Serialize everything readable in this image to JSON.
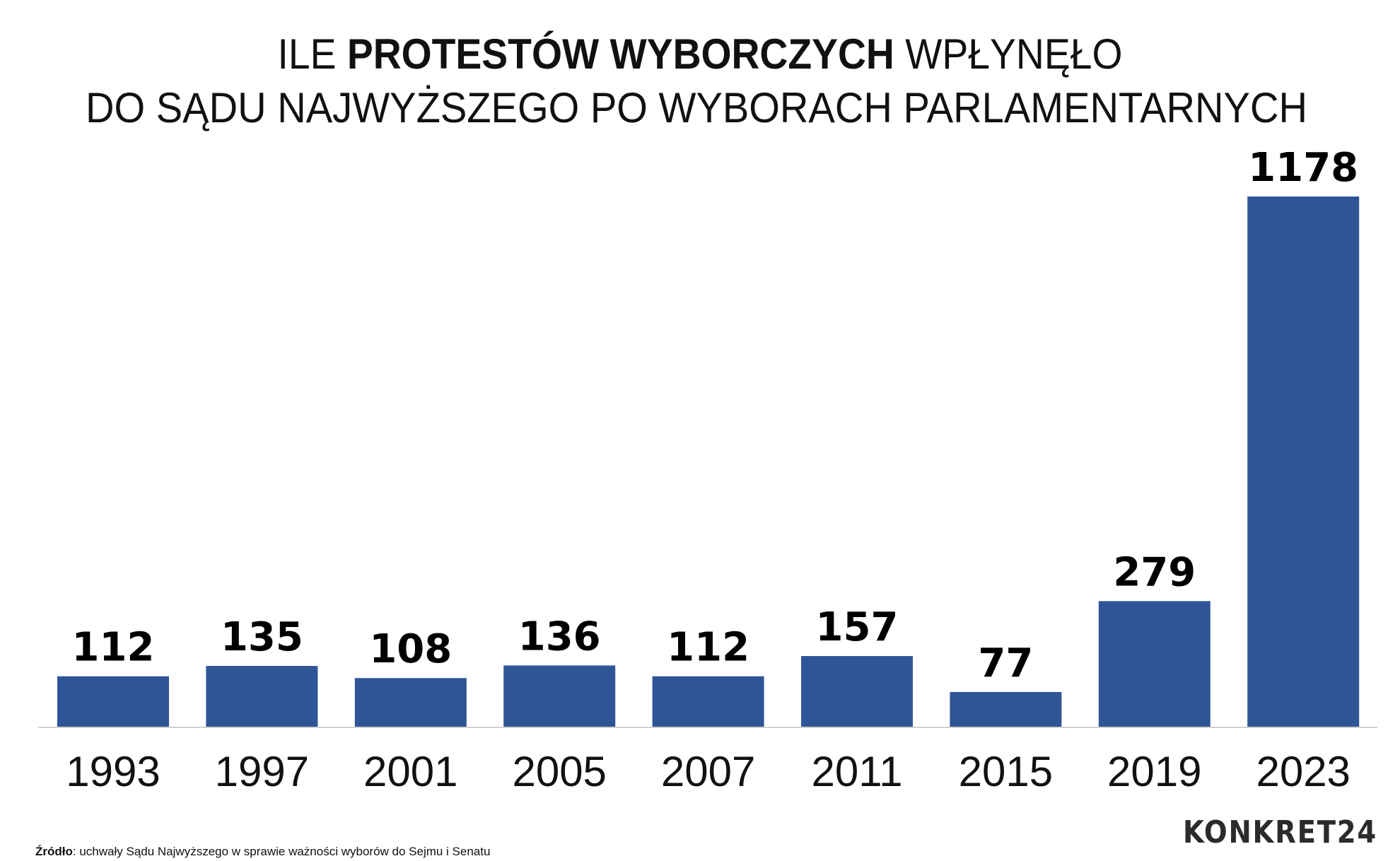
{
  "chart_data": {
    "type": "bar",
    "title_parts": [
      {
        "text": "ILE ",
        "bold": false
      },
      {
        "text": "PROTESTÓW WYBORCZYCH",
        "bold": true
      },
      {
        "text": " WPŁYNĘŁO",
        "bold": false
      }
    ],
    "title_line2": "DO SĄDU NAJWYŻSZEGO PO WYBORACH PARLAMENTARNYCH",
    "categories": [
      "1993",
      "1997",
      "2001",
      "2005",
      "2007",
      "2011",
      "2015",
      "2019",
      "2023"
    ],
    "values": [
      112,
      135,
      108,
      136,
      112,
      157,
      77,
      279,
      1178
    ],
    "xlabel": "",
    "ylabel": "",
    "ylim": [
      0,
      1178
    ],
    "grid": false,
    "legend": "none",
    "data_labels": true,
    "bar_color": "#2f5596"
  },
  "footer": {
    "source_label": "Źródło",
    "source_text": ": uchwały Sądu Najwyższego w sprawie ważności wyborów do Sejmu i Senatu",
    "logo": "KONKRET24"
  }
}
